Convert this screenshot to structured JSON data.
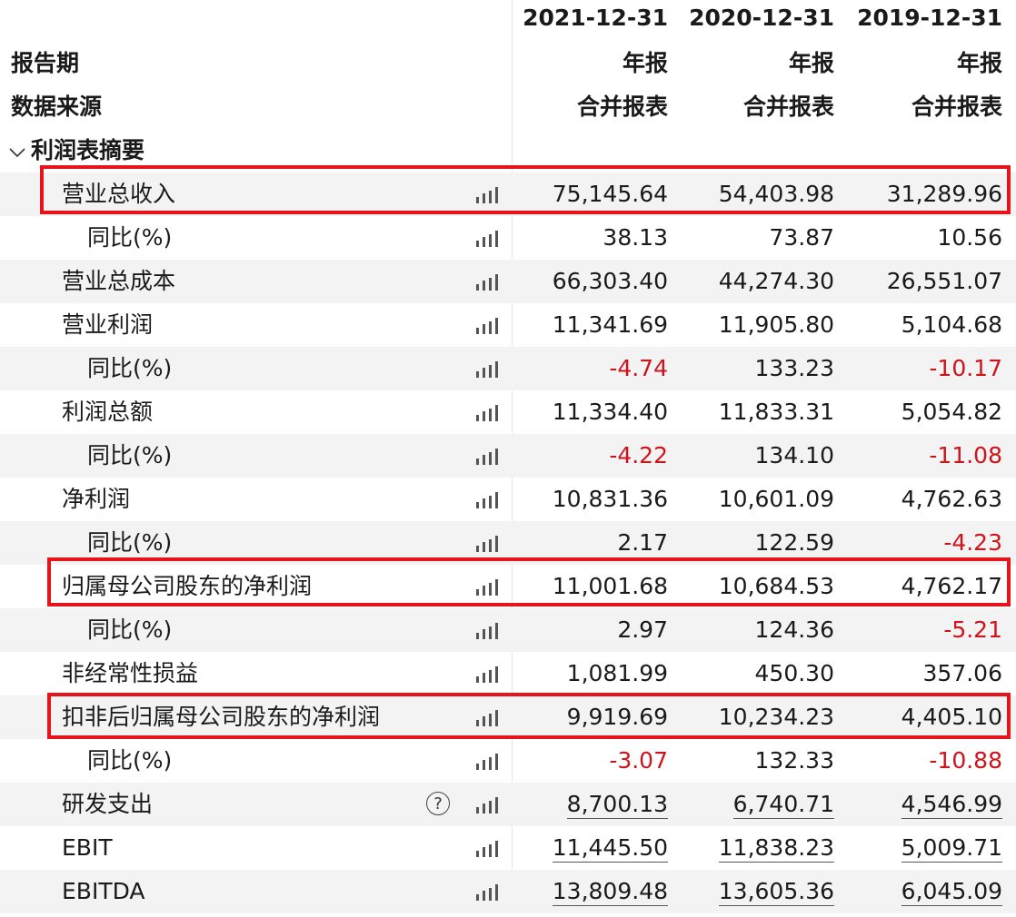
{
  "header": {
    "dates": [
      "2021-12-31",
      "2020-12-31",
      "2019-12-31"
    ],
    "report_period_label": "报告期",
    "report_period_values": [
      "年报",
      "年报",
      "年报"
    ],
    "data_source_label": "数据来源",
    "data_source_values": [
      "合并报表",
      "合并报表",
      "合并报表"
    ]
  },
  "section": {
    "title": "利润表摘要",
    "toggle_icon": "chevron-down-icon"
  },
  "rows": [
    {
      "label": "营业总收入",
      "level": 1,
      "values": [
        "75,145.64",
        "54,403.98",
        "31,289.96"
      ]
    },
    {
      "label": "同比(%)",
      "level": 2,
      "values": [
        "38.13",
        "73.87",
        "10.56"
      ]
    },
    {
      "label": "营业总成本",
      "level": 1,
      "values": [
        "66,303.40",
        "44,274.30",
        "26,551.07"
      ]
    },
    {
      "label": "营业利润",
      "level": 1,
      "values": [
        "11,341.69",
        "11,905.80",
        "5,104.68"
      ]
    },
    {
      "label": "同比(%)",
      "level": 2,
      "values": [
        "-4.74",
        "133.23",
        "-10.17"
      ]
    },
    {
      "label": "利润总额",
      "level": 1,
      "values": [
        "11,334.40",
        "11,833.31",
        "5,054.82"
      ]
    },
    {
      "label": "同比(%)",
      "level": 2,
      "values": [
        "-4.22",
        "134.10",
        "-11.08"
      ]
    },
    {
      "label": "净利润",
      "level": 1,
      "values": [
        "10,831.36",
        "10,601.09",
        "4,762.63"
      ]
    },
    {
      "label": "同比(%)",
      "level": 2,
      "values": [
        "2.17",
        "122.59",
        "-4.23"
      ]
    },
    {
      "label": "归属母公司股东的净利润",
      "level": 1,
      "values": [
        "11,001.68",
        "10,684.53",
        "4,762.17"
      ]
    },
    {
      "label": "同比(%)",
      "level": 2,
      "values": [
        "2.97",
        "124.36",
        "-5.21"
      ]
    },
    {
      "label": "非经常性损益",
      "level": 1,
      "values": [
        "1,081.99",
        "450.30",
        "357.06"
      ]
    },
    {
      "label": "扣非后归属母公司股东的净利润",
      "level": 1,
      "values": [
        "9,919.69",
        "10,234.23",
        "4,405.10"
      ]
    },
    {
      "label": "同比(%)",
      "level": 2,
      "values": [
        "-3.07",
        "132.33",
        "-10.88"
      ]
    },
    {
      "label": "研发支出",
      "level": 1,
      "values": [
        "8,700.13",
        "6,740.71",
        "4,546.99"
      ],
      "help": "?"
    },
    {
      "label": "EBIT",
      "level": 1,
      "values": [
        "11,445.50",
        "11,838.23",
        "5,009.71"
      ]
    },
    {
      "label": "EBITDA",
      "level": 1,
      "values": [
        "13,809.48",
        "13,605.36",
        "6,045.09"
      ]
    }
  ],
  "colors": {
    "negative": "#d0121b",
    "highlight_box": "#e8141b",
    "row_alt": "#f3f3f3"
  },
  "icons": {
    "row_chart": "bar-chart-icon",
    "help": "help-icon"
  }
}
